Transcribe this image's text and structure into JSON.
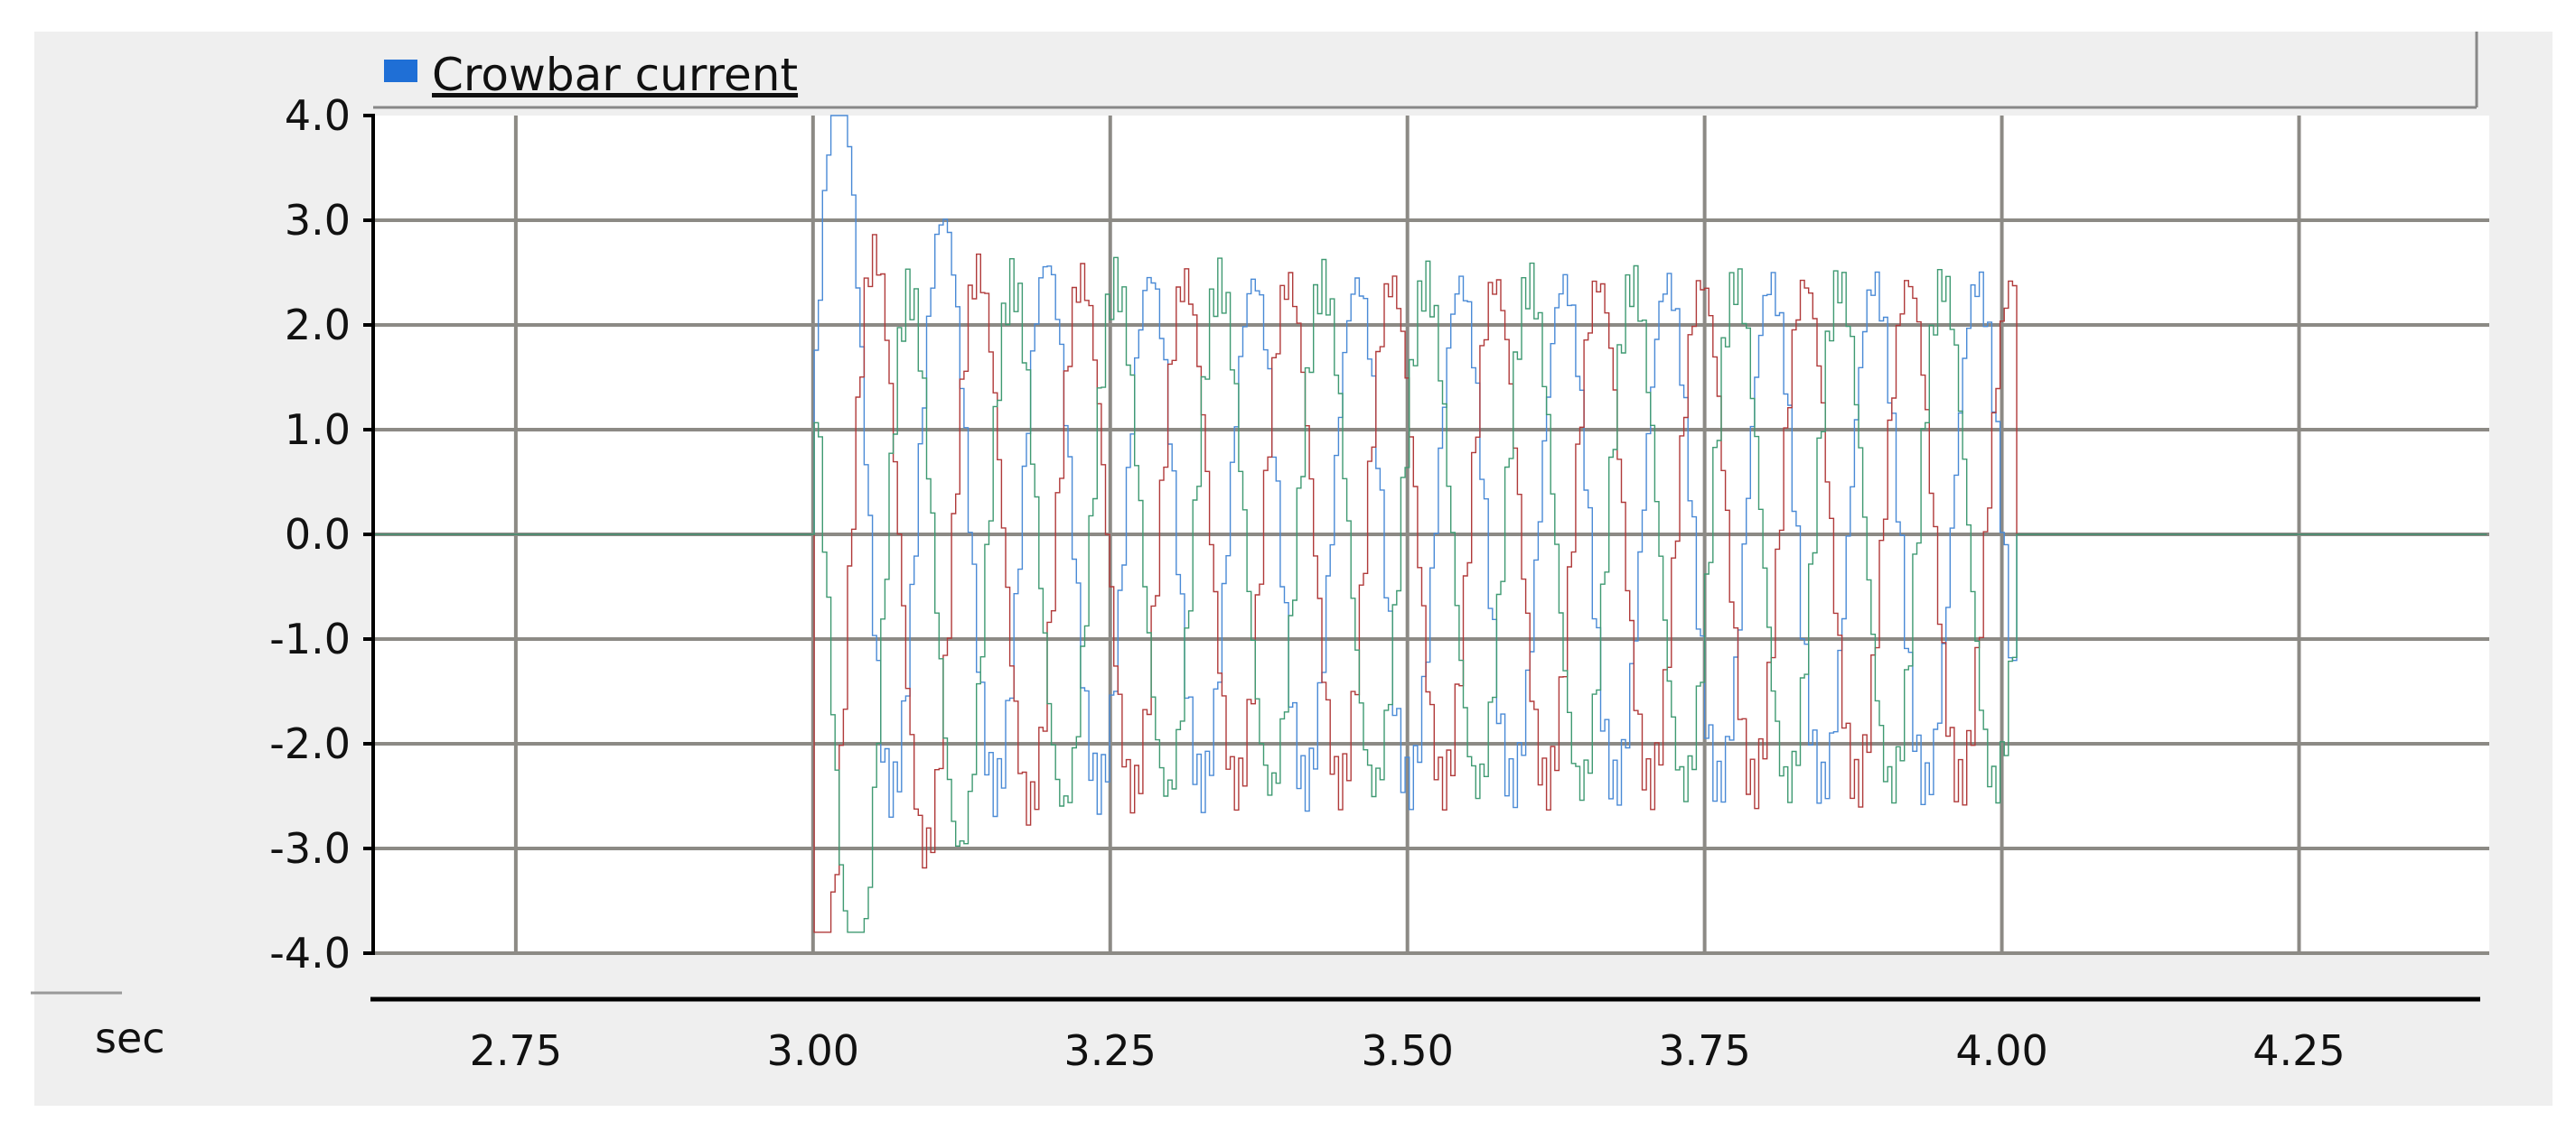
{
  "chart_data": {
    "type": "line",
    "legend": {
      "label": "Crowbar current",
      "color": "#1f6fd6",
      "placement": "top-left"
    },
    "x_unit_label": "sec",
    "xlim": [
      2.63,
      4.41
    ],
    "ylim": [
      -4.0,
      4.0
    ],
    "x_ticks": [
      2.75,
      3.0,
      3.25,
      3.5,
      3.75,
      4.0,
      4.25
    ],
    "x_tick_labels": [
      "2.75",
      "3.00",
      "3.25",
      "3.50",
      "3.75",
      "4.00",
      "4.25"
    ],
    "y_ticks": [
      4,
      3,
      2,
      1,
      0,
      -1,
      -2,
      -3,
      -4
    ],
    "y_tick_labels": [
      "4.0",
      "3.0",
      "2.0",
      "1.0",
      "0.0",
      "-1.0",
      "-2.0",
      "-3.0",
      "-4.0"
    ],
    "grid": true,
    "active_interval": [
      3.0,
      4.01
    ],
    "steady_amplitude": 2.4,
    "peak_max": 4.0,
    "peak_min": -3.8,
    "series": [
      {
        "color": "#4a8ad6",
        "phase_deg": 0
      },
      {
        "color": "#b03a3a",
        "phase_deg": -120
      },
      {
        "color": "#3f9a72",
        "phase_deg": 120
      }
    ]
  }
}
